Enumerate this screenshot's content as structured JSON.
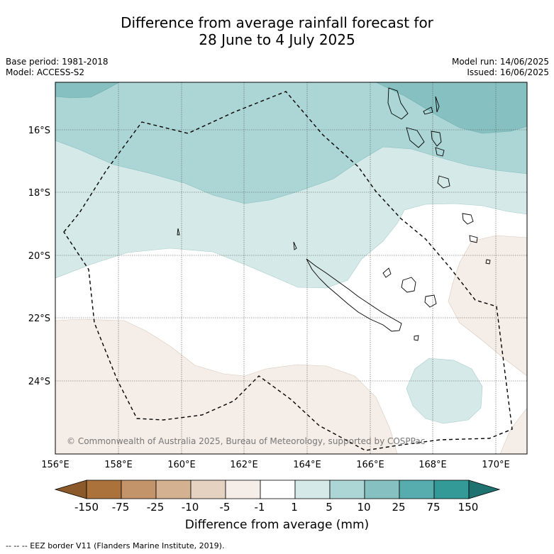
{
  "title_line1": "Difference from average rainfall forecast for",
  "title_line2": "28 June to 4 July 2025",
  "meta_left": [
    "Base period: 1981-2018",
    "Model: ACCESS-S2"
  ],
  "meta_right": [
    "Model run: 14/06/2025",
    "Issued: 16/06/2025"
  ],
  "lat_labels": [
    "16°S",
    "18°S",
    "20°S",
    "22°S",
    "24°S"
  ],
  "lon_labels": [
    "156°E",
    "158°E",
    "160°E",
    "162°E",
    "164°E",
    "166°E",
    "168°E",
    "170°E"
  ],
  "copyright": "© Commonwealth of Australia 2025, Bureau of Meteorology, supported by COSPPac",
  "colorbar": {
    "title": "Difference from average (mm)",
    "tick_labels": [
      "-150",
      "-75",
      "-25",
      "-10",
      "-5",
      "-1",
      "1",
      "5",
      "10",
      "25",
      "75",
      "150"
    ],
    "colors": [
      "#8c5a2a",
      "#ab723c",
      "#c39469",
      "#d3b191",
      "#e6d2c0",
      "#f5ede7",
      "#ffffff",
      "#d5e9e8",
      "#acd6d6",
      "#86c0c0",
      "#57adad",
      "#339a97",
      "#1e7270"
    ]
  },
  "footer": "--  --  -- EEZ border V11 (Flanders Marine Institute, 2019).",
  "colors": {
    "dry_light": "#f5ede7",
    "wet_5_10": "#d5e9e8",
    "wet_10_25": "#acd6d6",
    "wet_25_75": "#86c0c0"
  }
}
